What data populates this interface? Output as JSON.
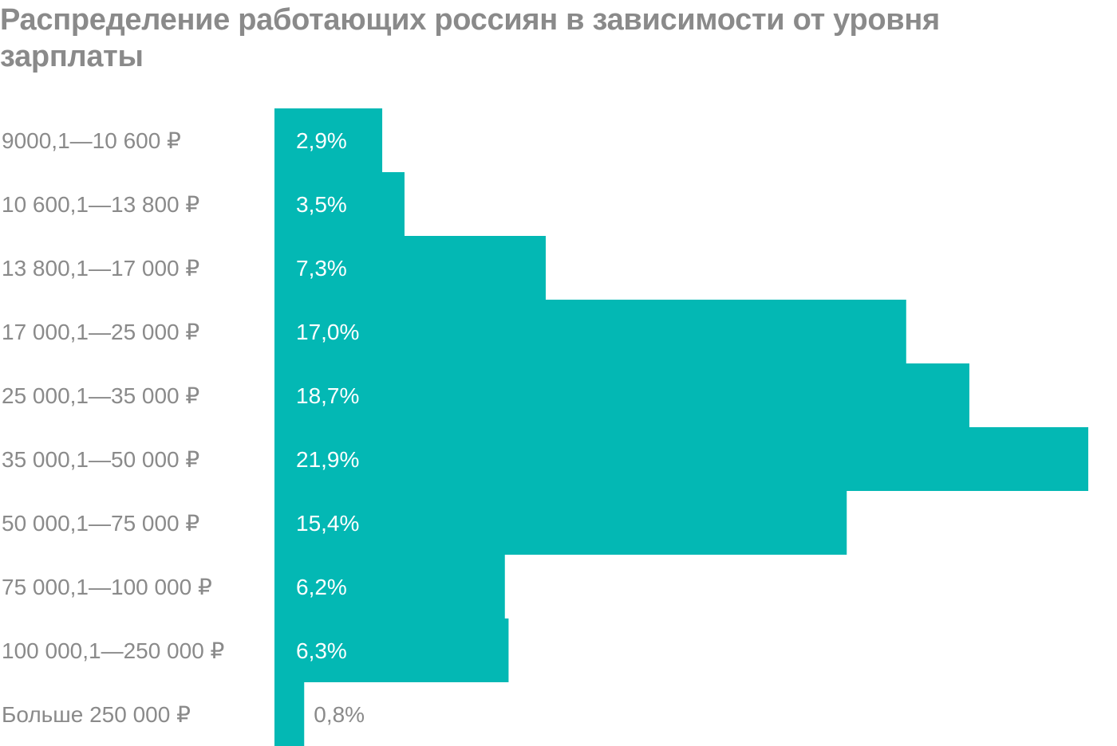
{
  "chart_data": {
    "type": "bar",
    "orientation": "horizontal",
    "title": "Распределение работающих россиян в зависимости от уровня зарплаты",
    "categories": [
      "9000,1—10 600 ₽",
      "10 600,1—13 800 ₽",
      "13 800,1—17 000 ₽",
      "17 000,1—25 000 ₽",
      "25 000,1—35 000 ₽",
      "35 000,1—50 000 ₽",
      "50 000,1—75 000 ₽",
      "75 000,1—100 000 ₽",
      "100 000,1—250 000 ₽",
      "Больше 250 000 ₽"
    ],
    "values": [
      2.9,
      3.5,
      7.3,
      17.0,
      18.7,
      21.9,
      15.4,
      6.2,
      6.3,
      0.8
    ],
    "value_labels": [
      "2,9%",
      "3,5%",
      "7,3%",
      "17,0%",
      "18,7%",
      "21,9%",
      "15,4%",
      "6,2%",
      "6,3%",
      "0,8%"
    ],
    "unit": "%",
    "xlim": [
      0,
      21.9
    ],
    "grid": false,
    "legend": "none",
    "colors": {
      "bar": "#03b8b4",
      "label_inside": "#ffffff",
      "label_outside": "#8a8a8a",
      "text": "#8a8a8a"
    }
  }
}
